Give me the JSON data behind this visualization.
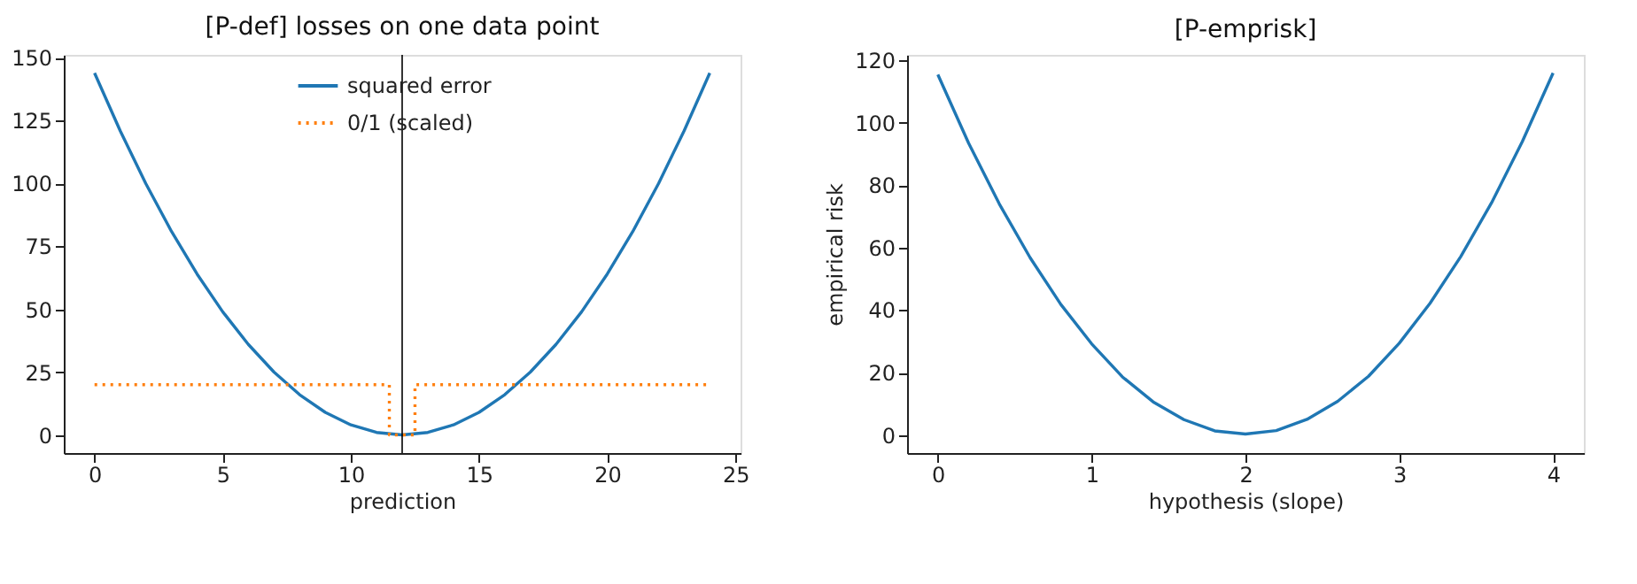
{
  "chart_data": [
    {
      "type": "line",
      "title": "[P-def] losses on one data point",
      "xlabel": "prediction",
      "series": [
        {
          "name": "squared error",
          "color": "#1f77b4",
          "line_style": "solid",
          "x": [
            0,
            1,
            2,
            3,
            4,
            5,
            6,
            7,
            8,
            9,
            10,
            11,
            12,
            13,
            14,
            15,
            16,
            17,
            18,
            19,
            20,
            21,
            22,
            23,
            24
          ],
          "values": [
            144,
            121,
            100,
            81,
            64,
            49,
            36,
            25,
            16,
            9,
            4,
            1,
            0,
            1,
            4,
            9,
            16,
            25,
            36,
            49,
            64,
            81,
            100,
            121,
            144
          ]
        },
        {
          "name": "0/1 (scaled)",
          "color": "#ff7f0e",
          "line_style": "dotted",
          "x": [
            0,
            11.5,
            11.5,
            12.5,
            12.5,
            24
          ],
          "values": [
            20,
            20,
            0,
            0,
            20,
            20
          ]
        }
      ],
      "ref_lines": [
        {
          "axis": "x",
          "value": 12,
          "color": "#000000"
        }
      ],
      "xlim": [
        -1.2,
        25.2
      ],
      "xticks": [
        0,
        5,
        10,
        15,
        20,
        25
      ],
      "ylim": [
        -7.2,
        151.2
      ],
      "yticks": [
        0,
        25,
        50,
        75,
        100,
        125,
        150
      ],
      "grid": false,
      "legend": "top",
      "marker": "none"
    },
    {
      "type": "line",
      "title": "[P-emprisk]",
      "xlabel": "hypothesis (slope)",
      "ylabel": "empirical risk",
      "series": [
        {
          "color": "#1f77b4",
          "line_style": "solid",
          "x": [
            0,
            0.2,
            0.4,
            0.6,
            0.8,
            1,
            1.2,
            1.4,
            1.6,
            1.8,
            2,
            2.2,
            2.4,
            2.6,
            2.8,
            3,
            3.2,
            3.4,
            3.6,
            3.8,
            4
          ],
          "values": [
            115.5,
            93.5,
            74,
            56.8,
            41.8,
            29.2,
            18.6,
            10.6,
            4.9,
            1.3,
            0.3,
            1.4,
            5,
            10.8,
            18.8,
            29.4,
            42.2,
            57.2,
            74.4,
            94,
            116
          ]
        }
      ],
      "xlim": [
        -0.2,
        4.2
      ],
      "xticks": [
        0,
        1,
        2,
        3,
        4
      ],
      "ylim": [
        -5.8,
        121.8
      ],
      "yticks": [
        0,
        20,
        40,
        60,
        80,
        100,
        120
      ],
      "grid": false,
      "legend": false,
      "marker": "none"
    }
  ]
}
